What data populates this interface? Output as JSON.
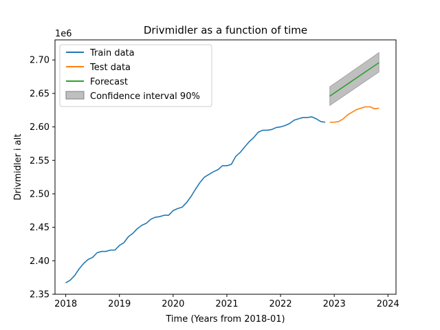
{
  "chart_data": {
    "type": "line",
    "title": "Drivmidler as a function of time",
    "xlabel": "Time (Years from 2018-01)",
    "ylabel": "Drivmidler i alt",
    "y_offset_label": "1e6",
    "xlim": [
      2017.8,
      2024.15
    ],
    "ylim": [
      2.35,
      2.73
    ],
    "x_ticks": [
      2018,
      2019,
      2020,
      2021,
      2022,
      2023,
      2024
    ],
    "x_tick_labels": [
      "2018",
      "2019",
      "2020",
      "2021",
      "2022",
      "2023",
      "2024"
    ],
    "y_ticks": [
      2.35,
      2.4,
      2.45,
      2.5,
      2.55,
      2.6,
      2.65,
      2.7
    ],
    "y_tick_labels": [
      "2.35",
      "2.40",
      "2.45",
      "2.50",
      "2.55",
      "2.60",
      "2.65",
      "2.70"
    ],
    "grid": false,
    "legend_position": "top-left",
    "series": [
      {
        "name": "Train data",
        "color": "#1f77b4",
        "x": [
          2018.0,
          2018.083,
          2018.167,
          2018.25,
          2018.333,
          2018.417,
          2018.5,
          2018.583,
          2018.667,
          2018.75,
          2018.833,
          2018.917,
          2019.0,
          2019.083,
          2019.167,
          2019.25,
          2019.333,
          2019.417,
          2019.5,
          2019.583,
          2019.667,
          2019.75,
          2019.833,
          2019.917,
          2020.0,
          2020.083,
          2020.167,
          2020.25,
          2020.333,
          2020.417,
          2020.5,
          2020.583,
          2020.667,
          2020.75,
          2020.833,
          2020.917,
          2021.0,
          2021.083,
          2021.167,
          2021.25,
          2021.333,
          2021.417,
          2021.5,
          2021.583,
          2021.667,
          2021.75,
          2021.833,
          2021.917,
          2022.0,
          2022.083,
          2022.167,
          2022.25,
          2022.333,
          2022.417,
          2022.5,
          2022.583,
          2022.667,
          2022.75,
          2022.833
        ],
        "y": [
          2.367,
          2.371,
          2.378,
          2.388,
          2.396,
          2.402,
          2.405,
          2.412,
          2.414,
          2.414,
          2.416,
          2.416,
          2.423,
          2.427,
          2.436,
          2.441,
          2.448,
          2.453,
          2.456,
          2.462,
          2.465,
          2.466,
          2.468,
          2.468,
          2.475,
          2.478,
          2.48,
          2.487,
          2.496,
          2.507,
          2.517,
          2.525,
          2.529,
          2.533,
          2.536,
          2.542,
          2.542,
          2.544,
          2.556,
          2.562,
          2.57,
          2.578,
          2.584,
          2.592,
          2.595,
          2.595,
          2.596,
          2.599,
          2.6,
          2.602,
          2.605,
          2.61,
          2.612,
          2.614,
          2.614,
          2.615,
          2.612,
          2.608,
          2.607
        ]
      },
      {
        "name": "Test data",
        "color": "#ff7f0e",
        "x": [
          2022.917,
          2023.0,
          2023.083,
          2023.167,
          2023.25,
          2023.333,
          2023.417,
          2023.5,
          2023.583,
          2023.667,
          2023.75,
          2023.833
        ],
        "y": [
          2.607,
          2.607,
          2.608,
          2.612,
          2.618,
          2.622,
          2.626,
          2.628,
          2.63,
          2.63,
          2.627,
          2.628
        ]
      },
      {
        "name": "Forecast",
        "color": "#2ca02c",
        "x": [
          2022.917,
          2023.833
        ],
        "y": [
          2.646,
          2.696
        ]
      }
    ],
    "confidence_interval": {
      "name": "Confidence interval 90%",
      "color": "#808080",
      "x": [
        2022.917,
        2023.833
      ],
      "lower": [
        2.632,
        2.682
      ],
      "upper": [
        2.66,
        2.711
      ]
    }
  }
}
